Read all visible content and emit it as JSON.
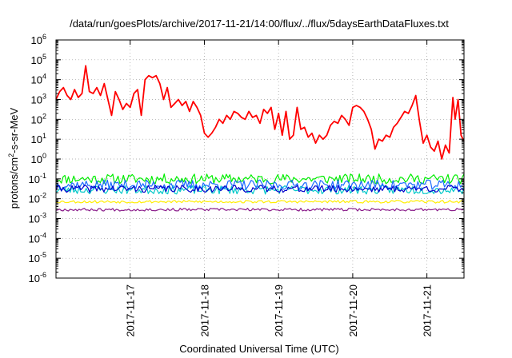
{
  "chart_data": {
    "type": "line",
    "title": "/data/run/goesPlots/archive/2017-11-21/14:00/flux/../flux/5daysEarthDataFluxes.txt",
    "xlabel": "Coordinated Universal Time (UTC)",
    "ylabel": {
      "base": "protons/cm",
      "sup": "2",
      "rest": "-s-sr-MeV"
    },
    "yscale": "log",
    "ylim_exponent": [
      -6,
      6
    ],
    "y_tick_exponents": [
      -6,
      -5,
      -4,
      -3,
      -2,
      -1,
      0,
      1,
      2,
      3,
      4,
      5,
      6
    ],
    "y_tick_base": "10",
    "xlim_days": [
      0,
      5.5
    ],
    "x_ticks": [
      {
        "day": 1,
        "label": "2017-11-17"
      },
      {
        "day": 2,
        "label": "2017-11-18"
      },
      {
        "day": 3,
        "label": "2017-11-19"
      },
      {
        "day": 4,
        "label": "2017-11-20"
      },
      {
        "day": 5,
        "label": "2017-11-21"
      }
    ],
    "grid": true,
    "legend": "none",
    "series": [
      {
        "color": "#ff0000",
        "points": [
          [
            0.0,
            3.0
          ],
          [
            0.05,
            3.4
          ],
          [
            0.1,
            3.6
          ],
          [
            0.15,
            3.2
          ],
          [
            0.2,
            3.0
          ],
          [
            0.25,
            3.5
          ],
          [
            0.3,
            3.1
          ],
          [
            0.35,
            3.3
          ],
          [
            0.4,
            4.7
          ],
          [
            0.45,
            3.4
          ],
          [
            0.5,
            3.3
          ],
          [
            0.55,
            3.6
          ],
          [
            0.6,
            3.2
          ],
          [
            0.65,
            3.8
          ],
          [
            0.7,
            3.0
          ],
          [
            0.75,
            2.2
          ],
          [
            0.8,
            3.4
          ],
          [
            0.85,
            3.0
          ],
          [
            0.9,
            2.5
          ],
          [
            0.95,
            2.8
          ],
          [
            1.0,
            2.6
          ],
          [
            1.05,
            3.3
          ],
          [
            1.1,
            3.5
          ],
          [
            1.15,
            2.2
          ],
          [
            1.2,
            4.0
          ],
          [
            1.25,
            4.2
          ],
          [
            1.3,
            4.1
          ],
          [
            1.35,
            4.2
          ],
          [
            1.4,
            3.8
          ],
          [
            1.45,
            3.0
          ],
          [
            1.5,
            3.6
          ],
          [
            1.55,
            2.6
          ],
          [
            1.6,
            2.8
          ],
          [
            1.65,
            3.0
          ],
          [
            1.7,
            2.7
          ],
          [
            1.75,
            2.9
          ],
          [
            1.8,
            2.4
          ],
          [
            1.85,
            2.9
          ],
          [
            1.9,
            2.6
          ],
          [
            1.95,
            2.2
          ],
          [
            2.0,
            1.3
          ],
          [
            2.05,
            1.1
          ],
          [
            2.1,
            1.3
          ],
          [
            2.15,
            1.6
          ],
          [
            2.2,
            2.0
          ],
          [
            2.25,
            1.8
          ],
          [
            2.3,
            2.2
          ],
          [
            2.35,
            2.0
          ],
          [
            2.4,
            2.4
          ],
          [
            2.45,
            2.3
          ],
          [
            2.5,
            2.1
          ],
          [
            2.55,
            2.0
          ],
          [
            2.6,
            2.4
          ],
          [
            2.65,
            2.1
          ],
          [
            2.7,
            2.2
          ],
          [
            2.75,
            1.8
          ],
          [
            2.8,
            2.5
          ],
          [
            2.85,
            2.3
          ],
          [
            2.9,
            2.6
          ],
          [
            2.95,
            1.5
          ],
          [
            3.0,
            2.3
          ],
          [
            3.05,
            1.2
          ],
          [
            3.1,
            2.4
          ],
          [
            3.15,
            1.0
          ],
          [
            3.2,
            1.2
          ],
          [
            3.25,
            2.6
          ],
          [
            3.3,
            1.5
          ],
          [
            3.35,
            1.6
          ],
          [
            3.4,
            1.1
          ],
          [
            3.45,
            1.3
          ],
          [
            3.5,
            0.8
          ],
          [
            3.55,
            1.2
          ],
          [
            3.6,
            1.0
          ],
          [
            3.65,
            1.2
          ],
          [
            3.7,
            1.7
          ],
          [
            3.75,
            1.9
          ],
          [
            3.8,
            1.8
          ],
          [
            3.85,
            2.2
          ],
          [
            3.9,
            2.0
          ],
          [
            3.95,
            1.7
          ],
          [
            4.0,
            2.6
          ],
          [
            4.05,
            2.7
          ],
          [
            4.1,
            2.6
          ],
          [
            4.15,
            2.4
          ],
          [
            4.2,
            2.0
          ],
          [
            4.25,
            1.5
          ],
          [
            4.3,
            0.5
          ],
          [
            4.35,
            1.0
          ],
          [
            4.4,
            0.9
          ],
          [
            4.45,
            1.2
          ],
          [
            4.5,
            1.1
          ],
          [
            4.55,
            1.6
          ],
          [
            4.6,
            1.8
          ],
          [
            4.65,
            2.1
          ],
          [
            4.7,
            2.4
          ],
          [
            4.75,
            2.3
          ],
          [
            4.8,
            2.7
          ],
          [
            4.85,
            3.2
          ],
          [
            4.9,
            1.9
          ],
          [
            4.95,
            0.8
          ],
          [
            5.0,
            1.2
          ],
          [
            5.05,
            0.6
          ],
          [
            5.1,
            0.4
          ],
          [
            5.15,
            0.9
          ],
          [
            5.2,
            0.0
          ],
          [
            5.25,
            0.7
          ],
          [
            5.3,
            0.3
          ],
          [
            5.35,
            3.1
          ],
          [
            5.38,
            2.0
          ],
          [
            5.42,
            3.0
          ],
          [
            5.46,
            1.2
          ],
          [
            5.5,
            0.9
          ]
        ]
      },
      {
        "color": "#00ee00",
        "level": -1.0,
        "jitter": 0.25,
        "seed": 11
      },
      {
        "color": "#00c8c8",
        "level": -1.55,
        "jitter": 0.22,
        "seed": 23
      },
      {
        "color": "#1a6bff",
        "level": -1.3,
        "jitter": 0.25,
        "seed": 37
      },
      {
        "color": "#0000cc",
        "level": -1.5,
        "jitter": 0.18,
        "seed": 41
      },
      {
        "color": "#ffee00",
        "level": -2.15,
        "jitter": 0.07,
        "seed": 53
      },
      {
        "color": "#8b1e8b",
        "level": -2.55,
        "jitter": 0.07,
        "seed": 67
      }
    ]
  }
}
